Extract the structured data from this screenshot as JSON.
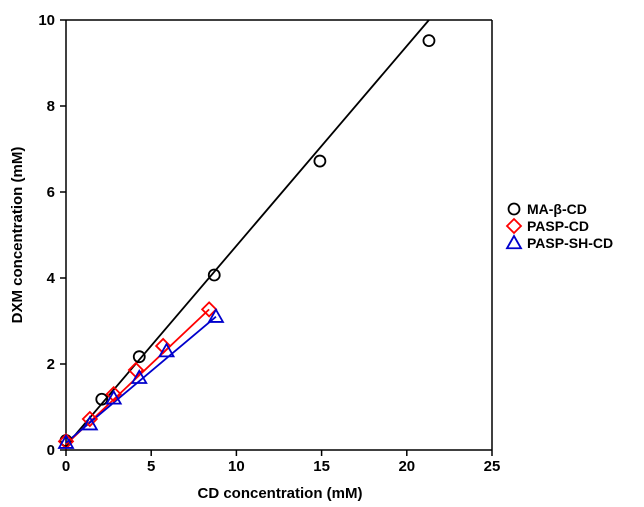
{
  "chart_data": {
    "type": "scatter",
    "title": "",
    "xlabel": "CD concentration (mM)",
    "ylabel": "DXM concentration (mM)",
    "xlim": [
      0,
      25
    ],
    "ylim": [
      0,
      10
    ],
    "xticks": [
      0,
      5,
      10,
      15,
      20,
      25
    ],
    "yticks": [
      0,
      2,
      4,
      6,
      8,
      10
    ],
    "grid": false,
    "legend_position": "right",
    "series": [
      {
        "name": "MA-β-CD",
        "marker": "circle",
        "color": "#000000",
        "points": [
          [
            0,
            0.22
          ],
          [
            2.1,
            1.18
          ],
          [
            4.3,
            2.17
          ],
          [
            8.7,
            4.07
          ],
          [
            14.9,
            6.72
          ],
          [
            21.3,
            9.52
          ]
        ],
        "fit": {
          "x": [
            0,
            21.3
          ],
          "y": [
            0.1,
            10.0
          ]
        }
      },
      {
        "name": "PASP-CD",
        "marker": "diamond",
        "color": "#ff0000",
        "points": [
          [
            0,
            0.2
          ],
          [
            1.4,
            0.72
          ],
          [
            2.8,
            1.3
          ],
          [
            4.1,
            1.86
          ],
          [
            5.7,
            2.42
          ],
          [
            8.4,
            3.27
          ]
        ],
        "fit": {
          "x": [
            0,
            8.4
          ],
          "y": [
            0.13,
            3.27
          ]
        }
      },
      {
        "name": "PASP-SH-CD",
        "marker": "triangle",
        "color": "#0000cc",
        "points": [
          [
            0,
            0.17
          ],
          [
            1.4,
            0.6
          ],
          [
            2.8,
            1.2
          ],
          [
            4.3,
            1.68
          ],
          [
            5.9,
            2.3
          ],
          [
            8.8,
            3.1
          ]
        ],
        "fit": {
          "x": [
            0,
            8.8
          ],
          "y": [
            0.17,
            3.1
          ]
        }
      }
    ]
  }
}
